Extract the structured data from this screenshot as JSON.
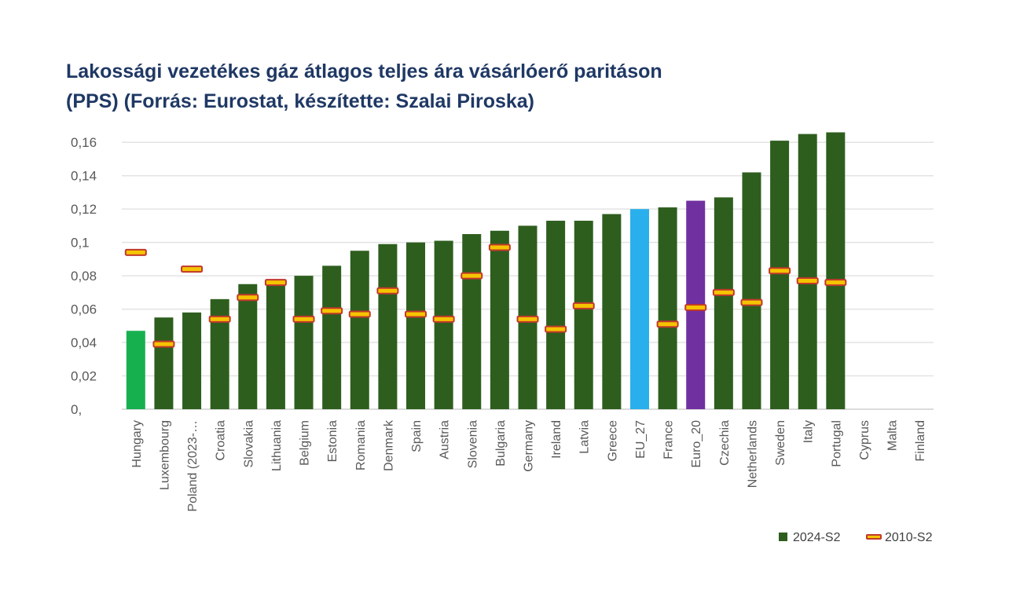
{
  "title_line1": "Lakossági vezetékes gáz átlagos teljes ára vásárlóerő paritáson",
  "title_line2": "(PPS) (Forrás: Eurostat, készítette: Szalai Piroska)",
  "chart_data": {
    "type": "bar",
    "title": "Lakossági vezetékes gáz átlagos teljes ára vásárlóerő paritáson (PPS) (Forrás: Eurostat, készítette: Szalai Piroska)",
    "categories": [
      "Hungary",
      "Luxembourg",
      "Poland (2023-…",
      "Croatia",
      "Slovakia",
      "Lithuania",
      "Belgium",
      "Estonia",
      "Romania",
      "Denmark",
      "Spain",
      "Austria",
      "Slovenia",
      "Bulgaria",
      "Germany",
      "Ireland",
      "Latvia",
      "Greece",
      "EU_27",
      "France",
      "Euro_20",
      "Czechia",
      "Netherlands",
      "Sweden",
      "Italy",
      "Portugal",
      "Cyprus",
      "Malta",
      "Finland"
    ],
    "ylim": [
      0,
      0.17
    ],
    "yticks": [
      {
        "value": 0,
        "label": "0,"
      },
      {
        "value": 0.02,
        "label": "0,02"
      },
      {
        "value": 0.04,
        "label": "0,04"
      },
      {
        "value": 0.06,
        "label": "0,06"
      },
      {
        "value": 0.08,
        "label": "0,08"
      },
      {
        "value": 0.1,
        "label": "0,1"
      },
      {
        "value": 0.12,
        "label": "0,12"
      },
      {
        "value": 0.14,
        "label": "0,14"
      },
      {
        "value": 0.16,
        "label": "0,16"
      }
    ],
    "grid": true,
    "legend_position": "bottom-right",
    "series": [
      {
        "name": "2024-S2",
        "style": "bar",
        "color": "#2e5e1e",
        "values": [
          0.047,
          0.055,
          0.058,
          0.066,
          0.075,
          0.076,
          0.08,
          0.086,
          0.095,
          0.099,
          0.1,
          0.101,
          0.105,
          0.107,
          0.11,
          0.113,
          0.113,
          0.117,
          0.12,
          0.121,
          0.125,
          0.127,
          0.142,
          0.161,
          0.165,
          0.166,
          null,
          null,
          null
        ],
        "point_colors": {
          "Hungary": "#17b04f",
          "EU_27": "#29b0ec",
          "Euro_20": "#7030a0"
        }
      },
      {
        "name": "2010-S2",
        "style": "marker",
        "color": "#f5c400",
        "edge_color": "#c0392b",
        "values": [
          0.094,
          0.039,
          0.084,
          0.054,
          0.067,
          0.076,
          0.054,
          0.059,
          0.057,
          0.071,
          0.057,
          0.054,
          0.08,
          0.097,
          0.054,
          0.048,
          0.062,
          null,
          null,
          0.051,
          0.061,
          0.07,
          0.064,
          0.083,
          0.077,
          0.076,
          null,
          null,
          null
        ]
      }
    ]
  }
}
